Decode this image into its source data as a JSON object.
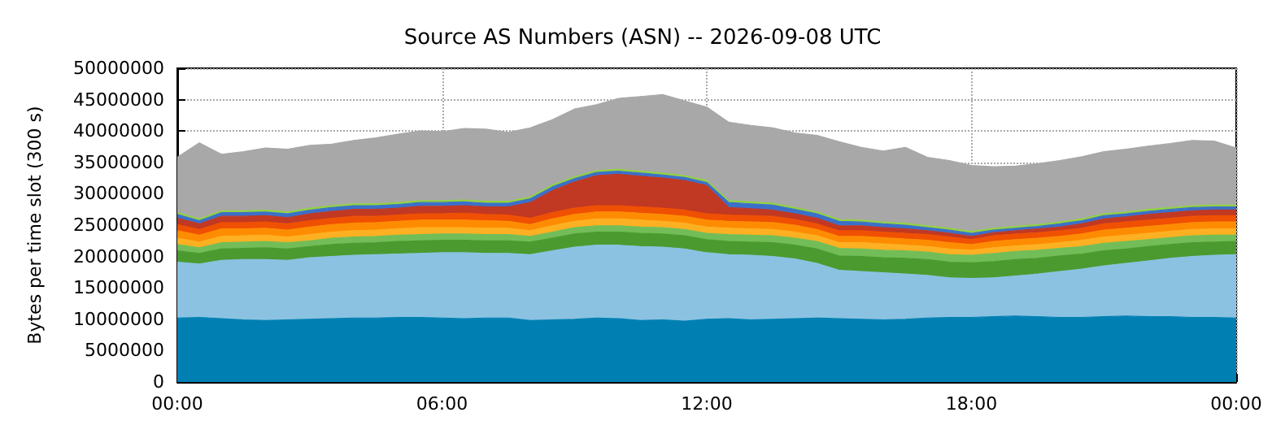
{
  "chart_data": {
    "type": "area",
    "title": "Source AS Numbers (ASN) -- 2026-09-08 UTC",
    "ylabel": "Bytes per time slot (300 s)",
    "stacked": true,
    "grid": true,
    "marker": "none",
    "xlim": [
      0,
      24
    ],
    "xticks": [
      {
        "value": 0,
        "label": "00:00"
      },
      {
        "value": 6,
        "label": "06:00"
      },
      {
        "value": 12,
        "label": "12:00"
      },
      {
        "value": 18,
        "label": "18:00"
      },
      {
        "value": 24,
        "label": "00:00"
      }
    ],
    "ylim": [
      0,
      50000000
    ],
    "yticks": [
      0,
      5000000,
      10000000,
      15000000,
      20000000,
      25000000,
      30000000,
      35000000,
      40000000,
      45000000,
      50000000
    ],
    "x": [
      0,
      0.5,
      1,
      1.5,
      2,
      2.5,
      3,
      3.5,
      4,
      4.5,
      5,
      5.5,
      6,
      6.5,
      7,
      7.5,
      8,
      8.5,
      9,
      9.5,
      10,
      10.5,
      11,
      11.5,
      12,
      12.5,
      13,
      13.5,
      14,
      14.5,
      15,
      15.5,
      16,
      16.5,
      17,
      17.5,
      18,
      18.5,
      19,
      19.5,
      20,
      20.5,
      21,
      21.5,
      22,
      22.5,
      23,
      23.5,
      24
    ],
    "series": [
      {
        "color": "#0080b2",
        "values": [
          10200000,
          10300000,
          10100000,
          9900000,
          9800000,
          9900000,
          10000000,
          10100000,
          10200000,
          10200000,
          10300000,
          10300000,
          10200000,
          10100000,
          10200000,
          10200000,
          9800000,
          9900000,
          10000000,
          10200000,
          10100000,
          9800000,
          9900000,
          9700000,
          10000000,
          10100000,
          9900000,
          10000000,
          10100000,
          10200000,
          10100000,
          10000000,
          9900000,
          10000000,
          10200000,
          10300000,
          10300000,
          10400000,
          10500000,
          10400000,
          10300000,
          10300000,
          10400000,
          10500000,
          10400000,
          10400000,
          10300000,
          10300000,
          10200000
        ]
      },
      {
        "color": "#8bc2e1",
        "values": [
          8900000,
          8500000,
          9300000,
          9600000,
          9700000,
          9500000,
          9800000,
          9900000,
          10000000,
          10100000,
          10100000,
          10200000,
          10400000,
          10500000,
          10300000,
          10300000,
          10500000,
          11000000,
          11500000,
          11600000,
          11700000,
          11800000,
          11600000,
          11500000,
          10600000,
          10200000,
          10300000,
          10000000,
          9500000,
          8700000,
          7700000,
          7600000,
          7500000,
          7200000,
          6800000,
          6300000,
          6200000,
          6200000,
          6400000,
          6800000,
          7300000,
          7700000,
          8100000,
          8400000,
          8900000,
          9300000,
          9700000,
          9900000,
          10100000
        ]
      },
      {
        "color": "#4b9a2f",
        "values": [
          1800000,
          1700000,
          1800000,
          1800000,
          1900000,
          1800000,
          1800000,
          1900000,
          1900000,
          1900000,
          2000000,
          2000000,
          2000000,
          2000000,
          2000000,
          2000000,
          2000000,
          2000000,
          2100000,
          2100000,
          2100000,
          2100000,
          2100000,
          2100000,
          2100000,
          2100000,
          2100000,
          2200000,
          2200000,
          2300000,
          2300000,
          2400000,
          2400000,
          2500000,
          2500000,
          2500000,
          2500000,
          2600000,
          2600000,
          2500000,
          2500000,
          2400000,
          2400000,
          2300000,
          2300000,
          2200000,
          2200000,
          2100000,
          2100000
        ]
      },
      {
        "color": "#72bd57",
        "values": [
          1000000,
          900000,
          1000000,
          1000000,
          1000000,
          1000000,
          900000,
          1000000,
          1000000,
          1000000,
          1000000,
          1000000,
          1000000,
          1000000,
          1000000,
          1000000,
          900000,
          1000000,
          1000000,
          1000000,
          1000000,
          1000000,
          1000000,
          1000000,
          1000000,
          1100000,
          1100000,
          1100000,
          1100000,
          1200000,
          1200000,
          1200000,
          1200000,
          1200000,
          1200000,
          1200000,
          1200000,
          1300000,
          1300000,
          1300000,
          1200000,
          1200000,
          1200000,
          1200000,
          1100000,
          1100000,
          1100000,
          1100000,
          1000000
        ]
      },
      {
        "color": "#fdb022",
        "values": [
          1000000,
          900000,
          1000000,
          1000000,
          1000000,
          900000,
          1000000,
          1000000,
          1000000,
          1000000,
          1000000,
          1100000,
          1000000,
          1000000,
          1000000,
          1000000,
          900000,
          1000000,
          1000000,
          1100000,
          1100000,
          1100000,
          1000000,
          1000000,
          1000000,
          1000000,
          1000000,
          1000000,
          1000000,
          900000,
          900000,
          1000000,
          1000000,
          900000,
          900000,
          900000,
          800000,
          900000,
          900000,
          900000,
          900000,
          1000000,
          1000000,
          1000000,
          1000000,
          1000000,
          1000000,
          1000000,
          1000000
        ]
      },
      {
        "color": "#fe8c02",
        "values": [
          1200000,
          1100000,
          1200000,
          1100000,
          1100000,
          1100000,
          1200000,
          1200000,
          1200000,
          1200000,
          1200000,
          1200000,
          1200000,
          1200000,
          1200000,
          1100000,
          1000000,
          1100000,
          1100000,
          1100000,
          1100000,
          1100000,
          1100000,
          1100000,
          1100000,
          1100000,
          1100000,
          1100000,
          1100000,
          1000000,
          1000000,
          1000000,
          1000000,
          1000000,
          1000000,
          1000000,
          900000,
          1000000,
          1000000,
          1000000,
          1000000,
          1000000,
          1100000,
          1100000,
          1100000,
          1100000,
          1100000,
          1100000,
          1100000
        ]
      },
      {
        "color": "#ef5002",
        "values": [
          1000000,
          900000,
          1000000,
          1000000,
          1000000,
          1000000,
          1000000,
          1000000,
          1100000,
          1000000,
          1000000,
          1000000,
          1000000,
          1100000,
          1000000,
          1000000,
          1000000,
          1000000,
          1000000,
          1000000,
          1000000,
          1000000,
          1000000,
          1000000,
          1000000,
          1000000,
          1000000,
          1000000,
          900000,
          900000,
          900000,
          900000,
          900000,
          900000,
          900000,
          900000,
          800000,
          900000,
          900000,
          900000,
          900000,
          900000,
          1000000,
          1000000,
          1000000,
          1000000,
          1000000,
          1000000,
          1000000
        ]
      },
      {
        "color": "#c13823",
        "values": [
          1000000,
          900000,
          1000000,
          1000000,
          1000000,
          1000000,
          1100000,
          1100000,
          1100000,
          1100000,
          1100000,
          1200000,
          1200000,
          1200000,
          1200000,
          1300000,
          2500000,
          3500000,
          4200000,
          4800000,
          5000000,
          4900000,
          4800000,
          4700000,
          4500000,
          1200000,
          1100000,
          1000000,
          900000,
          900000,
          800000,
          800000,
          700000,
          700000,
          600000,
          600000,
          500000,
          500000,
          500000,
          600000,
          600000,
          700000,
          800000,
          800000,
          900000,
          900000,
          900000,
          900000,
          900000
        ]
      },
      {
        "color": "#3b70c8",
        "values": [
          600000,
          500000,
          600000,
          600000,
          600000,
          600000,
          600000,
          600000,
          600000,
          600000,
          600000,
          600000,
          600000,
          600000,
          600000,
          600000,
          600000,
          600000,
          500000,
          500000,
          500000,
          500000,
          500000,
          500000,
          500000,
          800000,
          800000,
          800000,
          700000,
          700000,
          700000,
          600000,
          600000,
          600000,
          500000,
          500000,
          500000,
          400000,
          400000,
          400000,
          500000,
          500000,
          500000,
          500000,
          500000,
          500000,
          500000,
          500000,
          500000
        ]
      },
      {
        "color": "#92d142",
        "values": [
          300000,
          300000,
          300000,
          300000,
          300000,
          300000,
          300000,
          300000,
          300000,
          300000,
          300000,
          300000,
          300000,
          300000,
          300000,
          300000,
          300000,
          300000,
          300000,
          300000,
          300000,
          300000,
          300000,
          300000,
          300000,
          300000,
          300000,
          300000,
          300000,
          300000,
          300000,
          300000,
          300000,
          300000,
          300000,
          300000,
          300000,
          300000,
          300000,
          300000,
          300000,
          300000,
          300000,
          300000,
          300000,
          300000,
          300000,
          300000,
          300000
        ]
      },
      {
        "color": "#a8a8a8",
        "values": [
          8800000,
          12100000,
          9000000,
          9400000,
          9900000,
          10000000,
          10000000,
          9800000,
          10100000,
          10500000,
          10900000,
          11100000,
          11000000,
          11400000,
          11500000,
          11000000,
          11000000,
          10400000,
          10800000,
          10500000,
          11300000,
          11900000,
          12500000,
          11900000,
          11700000,
          12500000,
          12200000,
          12000000,
          11900000,
          12200000,
          12400000,
          11600000,
          11300000,
          12100000,
          10900000,
          10800000,
          10500000,
          9800000,
          9600000,
          9700000,
          9800000,
          9900000,
          9900000,
          10000000,
          10100000,
          10200000,
          10400000,
          10200000,
          9100000
        ]
      }
    ]
  }
}
